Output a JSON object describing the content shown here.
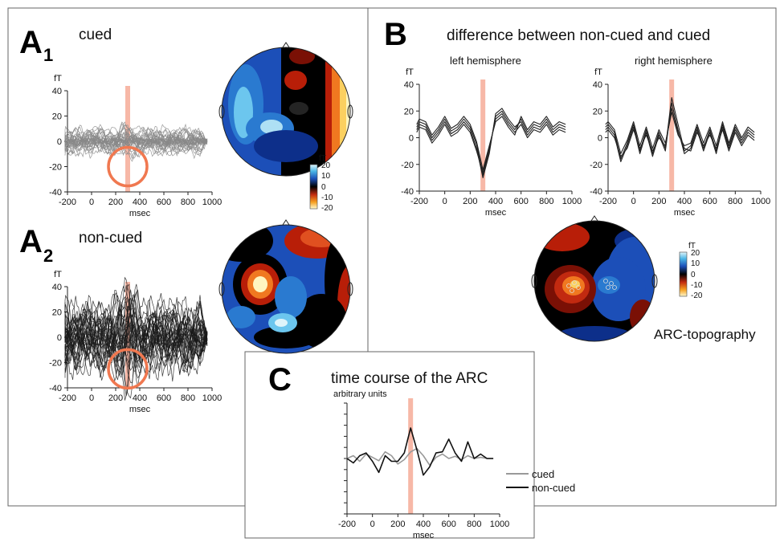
{
  "panels": {
    "a1": {
      "letter": "A",
      "sub": "1",
      "title": "cued"
    },
    "a2": {
      "letter": "A",
      "sub": "2",
      "title": "non-cued"
    },
    "b": {
      "letter": "B",
      "title": "difference between non-cued and cued",
      "left_title": "left hemisphere",
      "right_title": "right hemisphere",
      "topo_label": "ARC-topography"
    },
    "c": {
      "letter": "C",
      "title": "time course of the ARC"
    }
  },
  "colorbar": {
    "unit": "fT",
    "ticks": [
      "20",
      "10",
      "0",
      "-10",
      "-20"
    ]
  },
  "colors": {
    "highlight": "#f4a08a",
    "circle": "#f07850",
    "cued_grey": "#888888",
    "noncued_black": "#1a1a1a"
  },
  "chart_data": [
    {
      "id": "a1",
      "type": "line",
      "title": "cued",
      "ylabel": "fT",
      "xlabel": "msec",
      "xlim": [
        -200,
        1000
      ],
      "ylim": [
        -40,
        40
      ],
      "xticks": [
        "-200",
        "0",
        "200",
        "400",
        "600",
        "800",
        "1000"
      ],
      "yticks": [
        "40",
        "20",
        "0",
        "-20",
        "-40"
      ],
      "series_color": "#888888",
      "n_traces": 34,
      "envelope_fT": 12,
      "highlight_ms": 300,
      "circle_center": [
        300,
        -20
      ]
    },
    {
      "id": "a2",
      "type": "line",
      "title": "non-cued",
      "ylabel": "fT",
      "xlabel": "msec",
      "xlim": [
        -200,
        1000
      ],
      "ylim": [
        -40,
        40
      ],
      "xticks": [
        "-200",
        "0",
        "200",
        "400",
        "600",
        "800",
        "1000"
      ],
      "yticks": [
        "40",
        "20",
        "0",
        "-20",
        "-40"
      ],
      "series_color": "#1a1a1a",
      "n_traces": 34,
      "envelope_fT": 30,
      "highlight_ms": 300,
      "circle_center": [
        300,
        -25
      ]
    },
    {
      "id": "b-left",
      "type": "line",
      "title": "left hemisphere",
      "ylabel": "fT",
      "xlabel": "msec",
      "xlim": [
        -200,
        1000
      ],
      "ylim": [
        -40,
        40
      ],
      "xticks": [
        "-200",
        "0",
        "200",
        "400",
        "600",
        "800",
        "1000"
      ],
      "yticks": [
        "40",
        "20",
        "0",
        "-20",
        "-40"
      ],
      "highlight_ms": 300,
      "x": [
        -250,
        -200,
        -150,
        -100,
        -50,
        0,
        50,
        100,
        150,
        200,
        250,
        300,
        350,
        400,
        450,
        500,
        550,
        600,
        650,
        700,
        750,
        800,
        850,
        900,
        950
      ],
      "series": [
        {
          "values": [
            8,
            12,
            10,
            0,
            6,
            14,
            5,
            8,
            14,
            8,
            -5,
            -28,
            -10,
            16,
            20,
            12,
            6,
            14,
            4,
            10,
            8,
            14,
            6,
            10,
            8
          ]
        },
        {
          "values": [
            6,
            10,
            8,
            -2,
            4,
            12,
            3,
            6,
            12,
            6,
            -8,
            -30,
            -12,
            18,
            22,
            14,
            8,
            12,
            2,
            8,
            6,
            12,
            4,
            8,
            6
          ]
        },
        {
          "values": [
            4,
            8,
            6,
            -4,
            2,
            10,
            1,
            4,
            10,
            4,
            -10,
            -26,
            -8,
            14,
            18,
            10,
            4,
            10,
            0,
            6,
            4,
            10,
            2,
            6,
            4
          ]
        },
        {
          "values": [
            10,
            14,
            12,
            2,
            8,
            16,
            7,
            10,
            16,
            10,
            -3,
            -24,
            -6,
            12,
            16,
            8,
            2,
            16,
            6,
            12,
            10,
            16,
            8,
            12,
            10
          ]
        }
      ]
    },
    {
      "id": "b-right",
      "type": "line",
      "title": "right hemisphere",
      "ylabel": "fT",
      "xlabel": "msec",
      "xlim": [
        -200,
        1000
      ],
      "ylim": [
        -40,
        40
      ],
      "xticks": [
        "-200",
        "0",
        "200",
        "400",
        "600",
        "800",
        "1000"
      ],
      "yticks": [
        "40",
        "20",
        "0",
        "-20",
        "-40"
      ],
      "highlight_ms": 300,
      "x": [
        -250,
        -200,
        -150,
        -100,
        -50,
        0,
        50,
        100,
        150,
        200,
        250,
        300,
        350,
        400,
        450,
        500,
        550,
        600,
        650,
        700,
        750,
        800,
        850,
        900,
        950
      ],
      "series": [
        {
          "values": [
            8,
            10,
            4,
            -16,
            -4,
            10,
            -10,
            6,
            -12,
            4,
            -8,
            30,
            10,
            -10,
            -6,
            8,
            -8,
            6,
            -10,
            10,
            -6,
            8,
            -2,
            6,
            2
          ]
        },
        {
          "values": [
            6,
            8,
            2,
            -18,
            -6,
            8,
            -12,
            4,
            -14,
            2,
            -10,
            26,
            6,
            -12,
            -8,
            6,
            -10,
            4,
            -12,
            8,
            -8,
            6,
            -4,
            4,
            0
          ]
        },
        {
          "values": [
            4,
            6,
            0,
            -14,
            -8,
            6,
            -8,
            2,
            -10,
            0,
            -6,
            22,
            4,
            -8,
            -10,
            4,
            -6,
            2,
            -8,
            6,
            -10,
            4,
            -6,
            2,
            -2
          ]
        },
        {
          "values": [
            10,
            12,
            6,
            -12,
            -2,
            12,
            -6,
            8,
            -8,
            6,
            -4,
            19,
            2,
            -6,
            -4,
            10,
            -4,
            8,
            -6,
            12,
            -4,
            10,
            0,
            8,
            4
          ]
        }
      ]
    },
    {
      "id": "c",
      "type": "line",
      "title": "time course of the ARC",
      "ylabel": "arbitrary units",
      "xlabel": "msec",
      "xlim": [
        -200,
        1000
      ],
      "ylim": [
        -1,
        1
      ],
      "xticks": [
        "-200",
        "0",
        "200",
        "400",
        "600",
        "800",
        "1000"
      ],
      "highlight_ms": 300,
      "x": [
        -200,
        -150,
        -100,
        -50,
        0,
        50,
        100,
        150,
        200,
        250,
        300,
        350,
        400,
        450,
        500,
        550,
        600,
        650,
        700,
        750,
        800,
        850,
        900,
        950
      ],
      "series": [
        {
          "name": "cued",
          "color": "#999999",
          "values": [
            0,
            0.05,
            -0.05,
            0.08,
            0.02,
            -0.04,
            0.12,
            0.05,
            -0.1,
            -0.02,
            0.12,
            0.18,
            0.05,
            -0.12,
            0.02,
            0.08,
            0,
            0.04,
            -0.02,
            0.05,
            0,
            0.02,
            0,
            0
          ]
        },
        {
          "name": "non-cued",
          "color": "#111111",
          "values": [
            0,
            -0.08,
            0.05,
            0.1,
            -0.05,
            -0.25,
            0.05,
            -0.05,
            -0.05,
            0.1,
            0.55,
            0.15,
            -0.3,
            -0.15,
            0.1,
            0.12,
            0.35,
            0.1,
            -0.05,
            0.3,
            0,
            0.08,
            0,
            0
          ]
        }
      ]
    }
  ]
}
